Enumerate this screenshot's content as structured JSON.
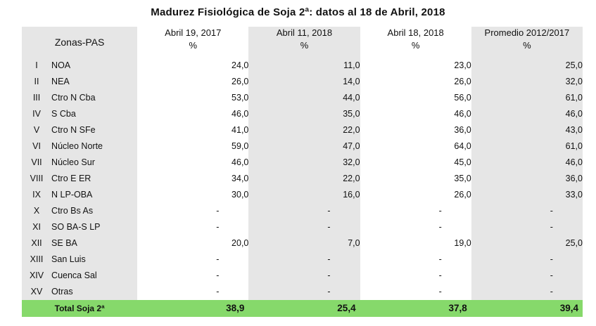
{
  "title": "Madurez Fisiológica de Soja 2ª: datos al 18 de Abril, 2018",
  "header": {
    "zone_label": "Zonas-PAS",
    "columns": [
      {
        "label": "Abril 19, 2017",
        "unit": "%"
      },
      {
        "label": "Abril 11, 2018",
        "unit": "%"
      },
      {
        "label": "Abril 18, 2018",
        "unit": "%"
      },
      {
        "label": "Promedio 2012/2017",
        "unit": "%"
      }
    ]
  },
  "rows": [
    {
      "num": "I",
      "zone": "NOA",
      "v": [
        "24,0",
        "11,0",
        "23,0",
        "25,0"
      ]
    },
    {
      "num": "II",
      "zone": "NEA",
      "v": [
        "26,0",
        "14,0",
        "26,0",
        "32,0"
      ]
    },
    {
      "num": "III",
      "zone": "Ctro N Cba",
      "v": [
        "53,0",
        "44,0",
        "56,0",
        "61,0"
      ]
    },
    {
      "num": "IV",
      "zone": "S Cba",
      "v": [
        "46,0",
        "35,0",
        "46,0",
        "46,0"
      ]
    },
    {
      "num": "V",
      "zone": "Ctro N SFe",
      "v": [
        "41,0",
        "22,0",
        "36,0",
        "43,0"
      ]
    },
    {
      "num": "VI",
      "zone": "Núcleo Norte",
      "v": [
        "59,0",
        "47,0",
        "64,0",
        "61,0"
      ]
    },
    {
      "num": "VII",
      "zone": "Núcleo Sur",
      "v": [
        "46,0",
        "32,0",
        "45,0",
        "46,0"
      ]
    },
    {
      "num": "VIII",
      "zone": "Ctro E ER",
      "v": [
        "34,0",
        "22,0",
        "35,0",
        "36,0"
      ]
    },
    {
      "num": "IX",
      "zone": "N LP-OBA",
      "v": [
        "30,0",
        "16,0",
        "26,0",
        "33,0"
      ]
    },
    {
      "num": "X",
      "zone": "Ctro Bs As",
      "v": [
        "-",
        "-",
        "-",
        "-"
      ]
    },
    {
      "num": "XI",
      "zone": "SO BA-S LP",
      "v": [
        "-",
        "-",
        "-",
        "-"
      ]
    },
    {
      "num": "XII",
      "zone": "SE BA",
      "v": [
        "20,0",
        "7,0",
        "19,0",
        "25,0"
      ]
    },
    {
      "num": "XIII",
      "zone": "San Luis",
      "v": [
        "-",
        "-",
        "-",
        "-"
      ]
    },
    {
      "num": "XIV",
      "zone": "Cuenca Sal",
      "v": [
        "-",
        "-",
        "-",
        "-"
      ]
    },
    {
      "num": "XV",
      "zone": "Otras",
      "v": [
        "-",
        "-",
        "-",
        "-"
      ]
    }
  ],
  "total": {
    "label": "Total Soja 2ª",
    "v": [
      "38,9",
      "25,4",
      "37,8",
      "39,4"
    ]
  },
  "colors": {
    "shade": "#e6e6e6",
    "total_row": "#86d96b"
  }
}
